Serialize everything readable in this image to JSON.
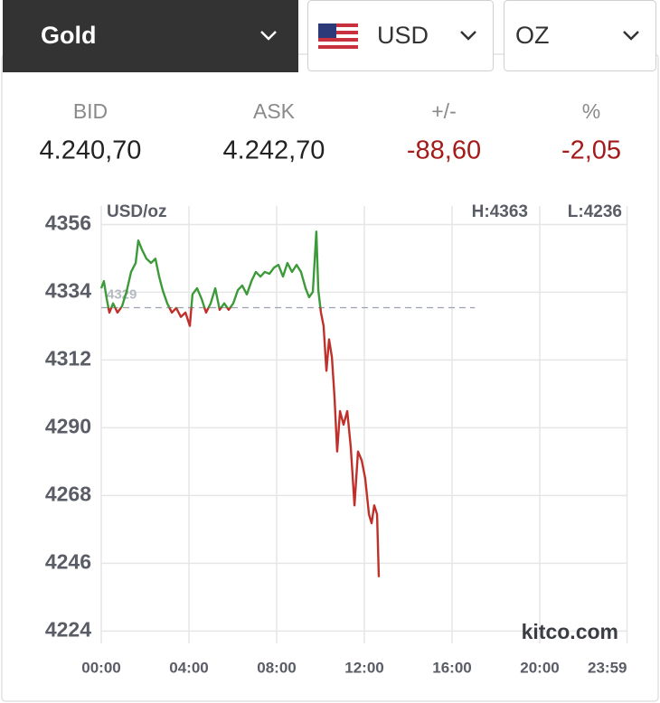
{
  "selectors": {
    "metal": "Gold",
    "currency": "USD",
    "unit": "OZ"
  },
  "quote": {
    "headers": [
      "BID",
      "ASK",
      "+/-",
      "%"
    ],
    "values": [
      "4.240,70",
      "4.242,70",
      "-88,60",
      "-2,05"
    ]
  },
  "chart_data": {
    "type": "line",
    "unit_label": "USD/oz",
    "high_label": "H:4363",
    "low_label": "L:4236",
    "watermark": "kitco.com",
    "previous_close": 4329,
    "x": [
      0,
      0.12,
      0.25,
      0.37,
      0.54,
      0.74,
      0.95,
      1.15,
      1.36,
      1.57,
      1.69,
      1.86,
      2.06,
      2.27,
      2.47,
      2.64,
      2.8,
      3.01,
      3.22,
      3.42,
      3.63,
      3.84,
      4.04,
      4.16,
      4.37,
      4.58,
      4.78,
      4.99,
      5.2,
      5.4,
      5.61,
      5.81,
      6.02,
      6.23,
      6.43,
      6.64,
      6.85,
      7.05,
      7.26,
      7.46,
      7.67,
      7.88,
      8.08,
      8.29,
      8.49,
      8.7,
      8.91,
      9.11,
      9.32,
      9.48,
      9.65,
      9.81,
      9.9,
      10.02,
      10.14,
      10.27,
      10.39,
      10.52,
      10.64,
      10.76,
      10.89,
      11.05,
      11.22,
      11.38,
      11.55,
      11.71,
      11.88,
      12.04,
      12.21,
      12.33,
      12.45,
      12.58,
      12.66
    ],
    "series": [
      {
        "name": "Gold",
        "values": [
          4335.3,
          4337.6,
          4331.8,
          4327.4,
          4330.4,
          4327.4,
          4329.5,
          4334.1,
          4340.6,
          4343.5,
          4350.8,
          4347.8,
          4344.9,
          4343.5,
          4344.9,
          4339.1,
          4334.7,
          4330.4,
          4327.4,
          4328.9,
          4326.0,
          4327.4,
          4323.1,
          4333.3,
          4335.3,
          4331.8,
          4327.4,
          4330.4,
          4335.3,
          4328.3,
          4330.4,
          4328.3,
          4330.4,
          4334.7,
          4336.2,
          4333.3,
          4337.6,
          4340.6,
          4339.1,
          4340.6,
          4340.0,
          4342.0,
          4342.9,
          4339.1,
          4343.5,
          4340.6,
          4342.9,
          4340.6,
          4335.3,
          4332.4,
          4334.1,
          4353.7,
          4334.7,
          4327.4,
          4323.1,
          4308.5,
          4318.7,
          4312.9,
          4299.8,
          4282.3,
          4295.4,
          4291.0,
          4295.4,
          4283.7,
          4264.8,
          4282.3,
          4279.4,
          4273.5,
          4261.9,
          4259.0,
          4264.8,
          4261.9,
          4241.5
        ]
      }
    ],
    "color_above": "#3d9a3a",
    "color_below": "#c0302b",
    "xlim": [
      0,
      24
    ],
    "xticks": [
      {
        "value": 0,
        "label": "00:00"
      },
      {
        "value": 4,
        "label": "04:00"
      },
      {
        "value": 8,
        "label": "08:00"
      },
      {
        "value": 12,
        "label": "12:00"
      },
      {
        "value": 16,
        "label": "16:00"
      },
      {
        "value": 20,
        "label": "20:00"
      },
      {
        "value": 23.98,
        "label": "23:59"
      }
    ],
    "ylim": [
      4220,
      4362
    ],
    "yticks": [
      4224,
      4246,
      4268,
      4290,
      4312,
      4334,
      4356
    ],
    "grid": true
  }
}
